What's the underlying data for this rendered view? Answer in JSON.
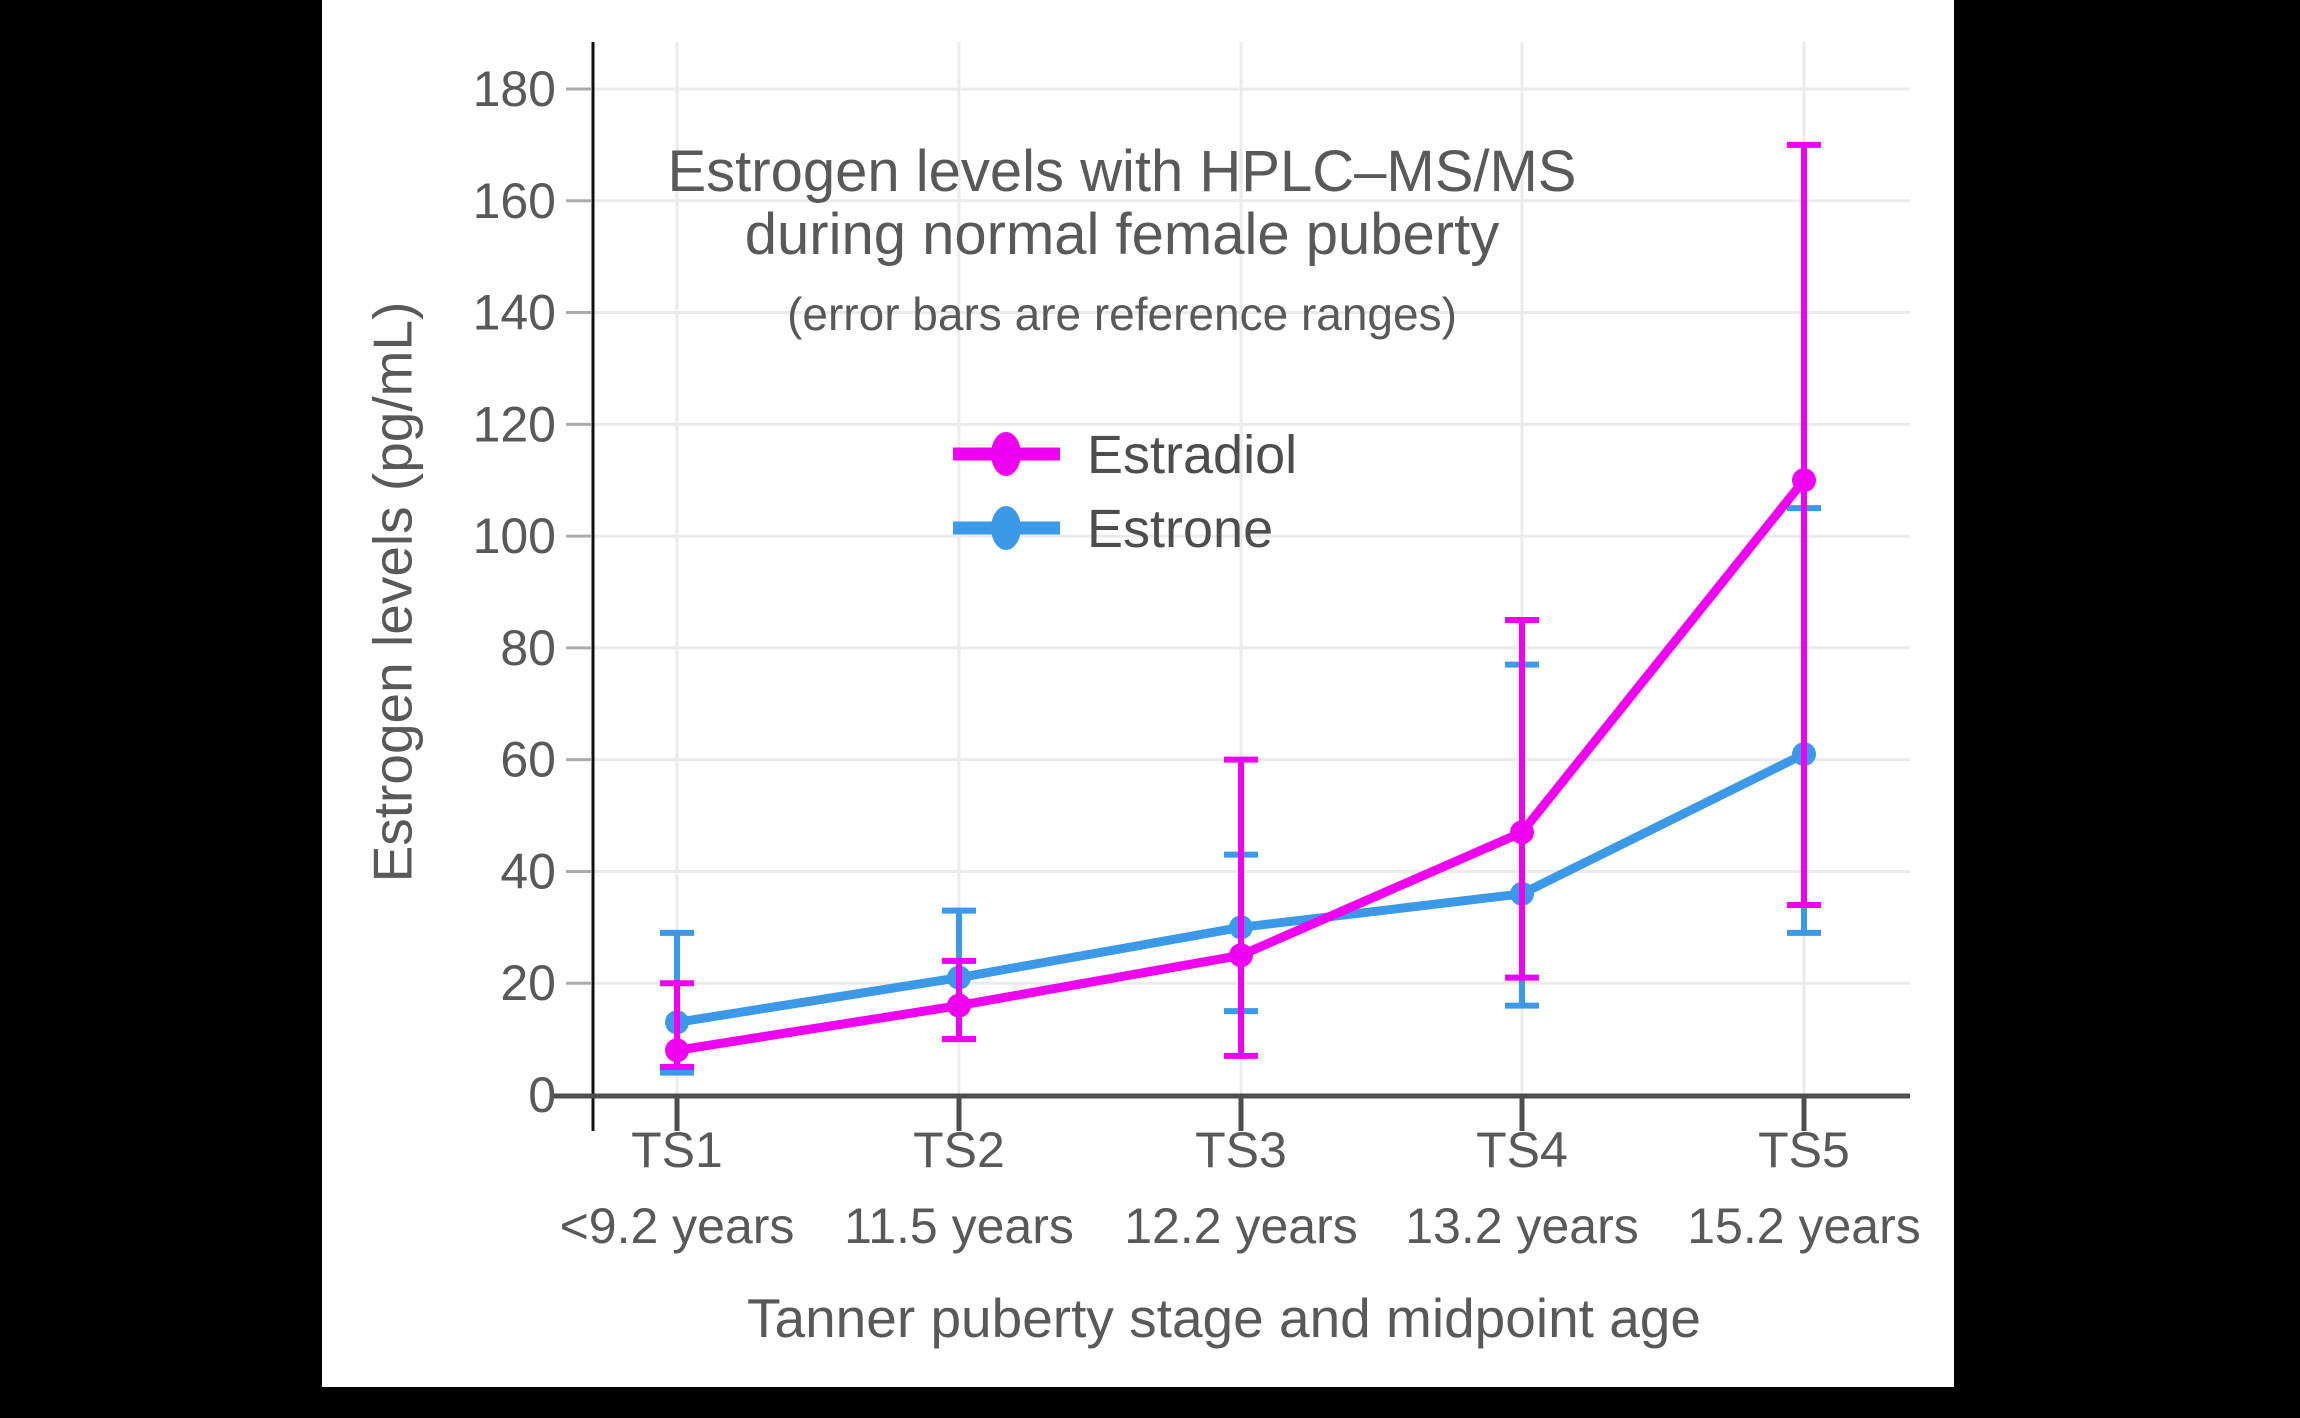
{
  "figure": {
    "background": "#000000",
    "panel_background": "#FFFFFF",
    "title_line1": "Estrogen levels with HPLC–MS/MS",
    "title_line2": "during normal female puberty",
    "subtitle": "(error bars are reference ranges)"
  },
  "chart_data": {
    "type": "line",
    "title": "Estrogen levels with HPLC–MS/MS during normal female puberty",
    "subtitle": "(error bars are reference ranges)",
    "xlabel": "Tanner puberty stage and midpoint age",
    "ylabel": "Estrogen levels (pg/mL)",
    "units": "pg/mL",
    "ylim": [
      0,
      180
    ],
    "ytick_step": 20,
    "grid": true,
    "legend_position": "inside-upper-center",
    "error_bar_meaning": "reference ranges",
    "categories": [
      {
        "stage": "TS1",
        "age": "<9.2 years"
      },
      {
        "stage": "TS2",
        "age": "11.5 years"
      },
      {
        "stage": "TS3",
        "age": "12.2 years"
      },
      {
        "stage": "TS4",
        "age": "13.2 years"
      },
      {
        "stage": "TS5",
        "age": "15.2 years"
      }
    ],
    "series": [
      {
        "name": "Estradiol",
        "color": "#F000F0",
        "values": [
          8,
          16,
          25,
          47,
          110
        ],
        "range_low": [
          5,
          10,
          7,
          21,
          34
        ],
        "range_high": [
          20,
          24,
          60,
          85,
          170
        ]
      },
      {
        "name": "Estrone",
        "color": "#3B99E8",
        "values": [
          13,
          21,
          30,
          36,
          61
        ],
        "range_low": [
          4,
          10,
          15,
          16,
          29
        ],
        "range_high": [
          29,
          33,
          43,
          77,
          105
        ]
      }
    ]
  },
  "style": {
    "text_color": "#595959",
    "legend_text_color": "#4D4D4D",
    "axis_line_color": "#4D4D4D",
    "spine_color": "#111111",
    "grid_color": "#EBEBEB",
    "tick_stub_color": "#ABABAB"
  }
}
